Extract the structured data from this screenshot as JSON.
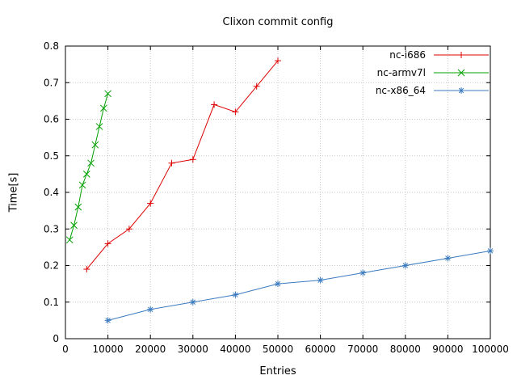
{
  "chart_data": {
    "type": "line",
    "title": "Clixon commit config",
    "xlabel": "Entries",
    "ylabel": "Time[s]",
    "xlim": [
      0,
      100000
    ],
    "ylim": [
      0,
      0.8
    ],
    "grid": true,
    "legend_position": "top-right",
    "xticks": [
      0,
      10000,
      20000,
      30000,
      40000,
      50000,
      60000,
      70000,
      80000,
      90000,
      100000
    ],
    "xtick_labels": [
      "0",
      "10000",
      "20000",
      "30000",
      "40000",
      "50000",
      "60000",
      "70000",
      "80000",
      "90000",
      "100000"
    ],
    "yticks": [
      0,
      0.1,
      0.2,
      0.3,
      0.4,
      0.5,
      0.6,
      0.7,
      0.8
    ],
    "ytick_labels": [
      "0",
      "0.1",
      "0.2",
      "0.3",
      "0.4",
      "0.5",
      "0.6",
      "0.7",
      "0.8"
    ],
    "series": [
      {
        "name": "nc-i686",
        "color": "#dd0000",
        "marker": "plus",
        "x": [
          5000,
          10000,
          15000,
          20000,
          25000,
          30000,
          35000,
          40000,
          45000,
          50000
        ],
        "y": [
          0.19,
          0.26,
          0.3,
          0.37,
          0.48,
          0.49,
          0.64,
          0.62,
          0.69,
          0.76
        ]
      },
      {
        "name": "nc-armv7l",
        "color": "#00a000",
        "marker": "cross",
        "x": [
          1000,
          2000,
          3000,
          4000,
          5000,
          6000,
          7000,
          8000,
          9000,
          10000
        ],
        "y": [
          0.27,
          0.31,
          0.36,
          0.42,
          0.45,
          0.48,
          0.53,
          0.58,
          0.63,
          0.67
        ]
      },
      {
        "name": "nc-x86_64",
        "color": "#3b7abf",
        "marker": "asterisk",
        "x": [
          10000,
          20000,
          30000,
          40000,
          50000,
          60000,
          70000,
          80000,
          90000,
          100000
        ],
        "y": [
          0.05,
          0.08,
          0.1,
          0.12,
          0.15,
          0.16,
          0.18,
          0.2,
          0.22,
          0.24
        ]
      }
    ]
  }
}
